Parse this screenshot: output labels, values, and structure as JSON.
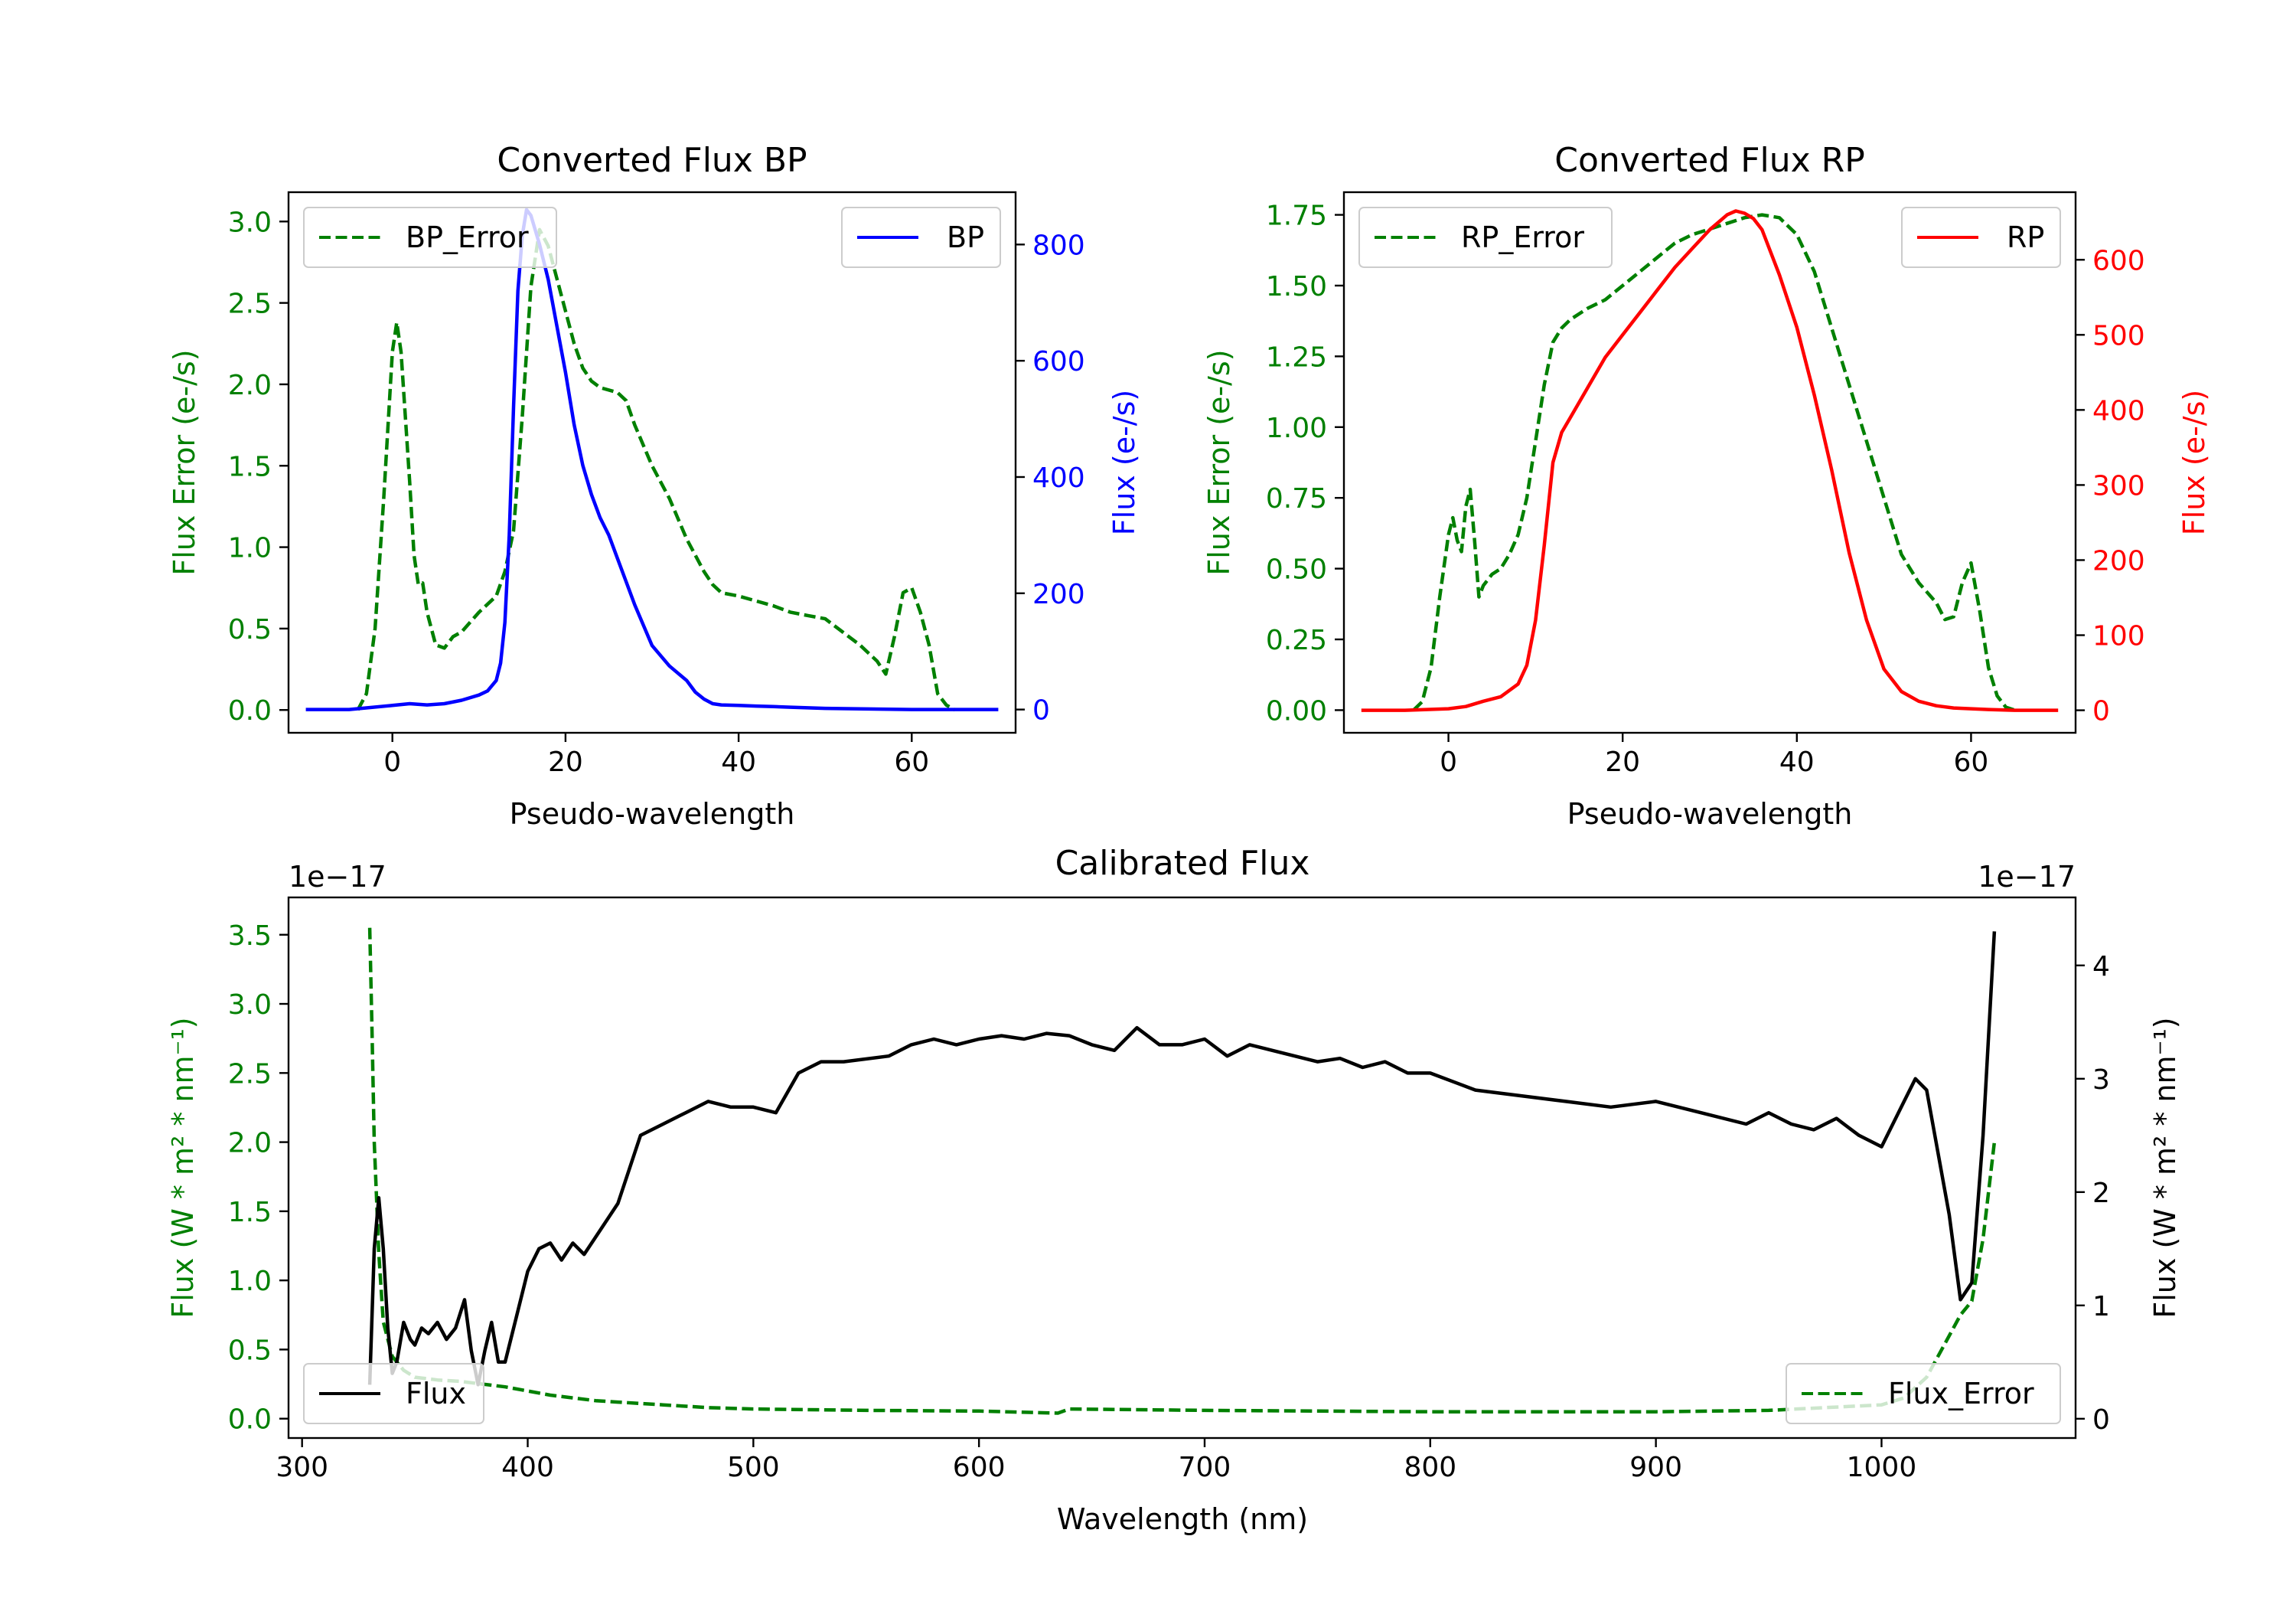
{
  "colors": {
    "error": "#008000",
    "bp": "#0000ff",
    "rp": "#ff0000",
    "flux": "#000000",
    "axis": "#000000"
  },
  "chart_data": [
    {
      "id": "bp",
      "type": "line",
      "title": "Converted Flux BP",
      "xlabel": "Pseudo-wavelength",
      "ylabel_left": "Flux Error (e-/s)",
      "ylabel_right": "Flux (e-/s)",
      "xlim": [
        -12,
        72
      ],
      "ylim_left": [
        -0.14,
        3.18
      ],
      "ylim_right": [
        -40,
        890
      ],
      "xticks": [
        0,
        20,
        40,
        60
      ],
      "xtick_labels": [
        "0",
        "20",
        "40",
        "60"
      ],
      "yticks_left": [
        0.0,
        0.5,
        1.0,
        1.5,
        2.0,
        2.5,
        3.0
      ],
      "ytick_labels_left": [
        "0.0",
        "0.5",
        "1.0",
        "1.5",
        "2.0",
        "2.5",
        "3.0"
      ],
      "yticks_right": [
        0,
        200,
        400,
        600,
        800
      ],
      "ytick_labels_right": [
        "0",
        "200",
        "400",
        "600",
        "800"
      ],
      "legend_left": {
        "label": "BP_Error",
        "placement": "upper left"
      },
      "legend_right": {
        "label": "BP",
        "placement": "upper right"
      },
      "series": [
        {
          "name": "BP_Error",
          "axis": "left",
          "style": "dashed",
          "color_key": "error",
          "x": [
            -4,
            -3,
            -2,
            -1,
            0,
            0.5,
            1,
            2,
            2.5,
            3,
            3.5,
            4,
            5,
            6,
            7,
            8,
            10,
            12,
            13,
            14,
            15,
            16,
            17,
            18,
            19,
            20,
            21,
            22,
            23,
            24,
            26,
            27,
            28,
            30,
            32,
            34,
            36,
            37,
            38,
            40,
            42,
            44,
            46,
            48,
            50,
            52,
            54,
            56,
            57,
            58,
            59,
            60,
            61,
            62,
            63,
            64,
            65
          ],
          "y": [
            0.0,
            0.1,
            0.5,
            1.3,
            2.2,
            2.38,
            2.2,
            1.4,
            0.95,
            0.77,
            0.78,
            0.6,
            0.4,
            0.38,
            0.45,
            0.48,
            0.6,
            0.7,
            0.85,
            1.1,
            1.8,
            2.6,
            2.95,
            2.85,
            2.65,
            2.45,
            2.25,
            2.1,
            2.02,
            1.98,
            1.95,
            1.9,
            1.75,
            1.5,
            1.3,
            1.05,
            0.85,
            0.77,
            0.72,
            0.7,
            0.67,
            0.64,
            0.6,
            0.58,
            0.56,
            0.48,
            0.4,
            0.3,
            0.22,
            0.45,
            0.72,
            0.75,
            0.6,
            0.4,
            0.1,
            0.03,
            0.0
          ]
        },
        {
          "name": "BP",
          "axis": "right",
          "style": "solid",
          "color_key": "bp",
          "x": [
            -10,
            -5,
            0,
            2,
            4,
            6,
            8,
            10,
            11,
            12,
            12.5,
            13,
            13.5,
            14,
            14.5,
            15,
            15.5,
            16,
            17,
            18,
            19,
            20,
            21,
            22,
            23,
            24,
            25,
            26,
            27,
            28,
            30,
            32,
            34,
            35,
            36,
            37,
            38,
            40,
            42,
            44,
            46,
            48,
            50,
            55,
            60,
            65,
            70
          ],
          "y": [
            0,
            0,
            7,
            10,
            8,
            10,
            16,
            25,
            32,
            50,
            80,
            150,
            300,
            520,
            720,
            815,
            860,
            850,
            800,
            740,
            660,
            580,
            490,
            420,
            370,
            330,
            300,
            260,
            220,
            180,
            110,
            75,
            50,
            30,
            18,
            10,
            8,
            7,
            6,
            5,
            4,
            3,
            2,
            1,
            0,
            0,
            0
          ]
        }
      ]
    },
    {
      "id": "rp",
      "type": "line",
      "title": "Converted Flux RP",
      "xlabel": "Pseudo-wavelength",
      "ylabel_left": "Flux Error (e-/s)",
      "ylabel_right": "Flux (e-/s)",
      "xlim": [
        -12,
        72
      ],
      "ylim_left": [
        -0.08,
        1.83
      ],
      "ylim_right": [
        -30,
        690
      ],
      "xticks": [
        0,
        20,
        40,
        60
      ],
      "xtick_labels": [
        "0",
        "20",
        "40",
        "60"
      ],
      "yticks_left": [
        0.0,
        0.25,
        0.5,
        0.75,
        1.0,
        1.25,
        1.5,
        1.75
      ],
      "ytick_labels_left": [
        "0.00",
        "0.25",
        "0.50",
        "0.75",
        "1.00",
        "1.25",
        "1.50",
        "1.75"
      ],
      "yticks_right": [
        0,
        100,
        200,
        300,
        400,
        500,
        600
      ],
      "ytick_labels_right": [
        "0",
        "100",
        "200",
        "300",
        "400",
        "500",
        "600"
      ],
      "legend_left": {
        "label": "RP_Error",
        "placement": "upper left"
      },
      "legend_right": {
        "label": "RP",
        "placement": "upper right"
      },
      "series": [
        {
          "name": "RP_Error",
          "axis": "left",
          "style": "dashed",
          "color_key": "error",
          "x": [
            -4,
            -3,
            -2,
            -1,
            0,
            0.5,
            1,
            1.5,
            2,
            2.5,
            3,
            3.5,
            4,
            5,
            6,
            7,
            8,
            9,
            10,
            11,
            12,
            13,
            14,
            15,
            16,
            18,
            20,
            22,
            24,
            26,
            28,
            30,
            32,
            34,
            36,
            38,
            40,
            42,
            44,
            46,
            48,
            50,
            52,
            54,
            56,
            57,
            58,
            59,
            60,
            61,
            62,
            63,
            64,
            65
          ],
          "y": [
            0.0,
            0.03,
            0.15,
            0.4,
            0.62,
            0.68,
            0.6,
            0.56,
            0.72,
            0.78,
            0.6,
            0.4,
            0.44,
            0.48,
            0.5,
            0.55,
            0.62,
            0.75,
            0.95,
            1.15,
            1.3,
            1.35,
            1.38,
            1.4,
            1.42,
            1.45,
            1.5,
            1.55,
            1.6,
            1.65,
            1.68,
            1.7,
            1.72,
            1.74,
            1.75,
            1.74,
            1.68,
            1.55,
            1.35,
            1.15,
            0.95,
            0.75,
            0.55,
            0.45,
            0.38,
            0.32,
            0.33,
            0.45,
            0.52,
            0.35,
            0.15,
            0.05,
            0.01,
            0.0
          ]
        },
        {
          "name": "RP",
          "axis": "right",
          "style": "solid",
          "color_key": "rp",
          "x": [
            -10,
            -5,
            0,
            2,
            4,
            6,
            8,
            9,
            10,
            11,
            12,
            13,
            14,
            16,
            18,
            20,
            22,
            24,
            26,
            28,
            30,
            32,
            33,
            34,
            35,
            36,
            38,
            40,
            42,
            44,
            46,
            48,
            50,
            52,
            54,
            56,
            58,
            60,
            62,
            65,
            70
          ],
          "y": [
            0,
            0,
            2,
            5,
            12,
            18,
            35,
            60,
            120,
            220,
            330,
            370,
            390,
            430,
            470,
            500,
            530,
            560,
            590,
            615,
            640,
            660,
            665,
            662,
            655,
            640,
            580,
            510,
            420,
            320,
            210,
            120,
            55,
            25,
            12,
            6,
            3,
            2,
            1,
            0,
            0
          ]
        }
      ]
    },
    {
      "id": "calibrated",
      "type": "line",
      "title": "Calibrated Flux",
      "xlabel": "Wavelength (nm)",
      "ylabel_left": "Flux (W * m² * nm⁻¹)",
      "ylabel_right": "Flux (W * m² * nm⁻¹)",
      "offset_left": "1e−17",
      "offset_right": "1e−17",
      "xlim": [
        294,
        1086
      ],
      "ylim_left": [
        -0.14,
        3.77
      ],
      "ylim_right": [
        -0.17,
        4.6
      ],
      "xticks": [
        300,
        400,
        500,
        600,
        700,
        800,
        900,
        1000
      ],
      "xtick_labels": [
        "300",
        "400",
        "500",
        "600",
        "700",
        "800",
        "900",
        "1000"
      ],
      "yticks_left": [
        0.0,
        0.5,
        1.0,
        1.5,
        2.0,
        2.5,
        3.0,
        3.5
      ],
      "ytick_labels_left": [
        "0.0",
        "0.5",
        "1.0",
        "1.5",
        "2.0",
        "2.5",
        "3.0",
        "3.5"
      ],
      "yticks_right": [
        0,
        1,
        2,
        3,
        4
      ],
      "ytick_labels_right": [
        "0",
        "1",
        "2",
        "3",
        "4"
      ],
      "legend_left": {
        "label": "Flux",
        "placement": "lower left"
      },
      "legend_right": {
        "label": "Flux_Error",
        "placement": "lower right"
      },
      "series": [
        {
          "name": "Flux_Error",
          "axis": "left",
          "style": "dashed",
          "color_key": "error",
          "x": [
            330,
            331,
            332,
            334,
            336,
            340,
            345,
            350,
            360,
            370,
            380,
            390,
            400,
            410,
            420,
            430,
            440,
            450,
            460,
            480,
            500,
            550,
            600,
            635,
            640,
            700,
            800,
            900,
            950,
            1000,
            1010,
            1020,
            1030,
            1035,
            1040,
            1045,
            1050
          ],
          "y": [
            3.55,
            2.8,
            2.0,
            1.2,
            0.7,
            0.45,
            0.35,
            0.3,
            0.28,
            0.27,
            0.25,
            0.23,
            0.2,
            0.17,
            0.15,
            0.13,
            0.12,
            0.11,
            0.1,
            0.08,
            0.07,
            0.06,
            0.055,
            0.04,
            0.07,
            0.06,
            0.05,
            0.05,
            0.06,
            0.1,
            0.15,
            0.3,
            0.6,
            0.75,
            0.85,
            1.3,
            2.0
          ]
        },
        {
          "name": "Flux",
          "axis": "right",
          "style": "solid",
          "color_key": "flux",
          "x": [
            330,
            332,
            334,
            336,
            338,
            340,
            342,
            345,
            348,
            350,
            353,
            356,
            360,
            364,
            368,
            372,
            375,
            378,
            381,
            384,
            387,
            390,
            395,
            400,
            405,
            410,
            415,
            420,
            425,
            430,
            440,
            450,
            460,
            470,
            480,
            490,
            500,
            510,
            520,
            530,
            540,
            560,
            570,
            580,
            590,
            600,
            610,
            620,
            630,
            640,
            650,
            660,
            670,
            680,
            690,
            700,
            710,
            720,
            730,
            740,
            750,
            760,
            770,
            780,
            790,
            800,
            820,
            840,
            860,
            880,
            900,
            920,
            940,
            950,
            960,
            970,
            980,
            990,
            1000,
            1010,
            1015,
            1020,
            1030,
            1035,
            1040,
            1045,
            1050
          ],
          "y": [
            0.3,
            1.5,
            1.95,
            1.5,
            0.8,
            0.4,
            0.5,
            0.85,
            0.7,
            0.65,
            0.8,
            0.75,
            0.85,
            0.7,
            0.8,
            1.05,
            0.6,
            0.3,
            0.6,
            0.85,
            0.5,
            0.5,
            0.9,
            1.3,
            1.5,
            1.55,
            1.4,
            1.55,
            1.45,
            1.6,
            1.9,
            2.5,
            2.6,
            2.7,
            2.8,
            2.75,
            2.75,
            2.7,
            3.05,
            3.15,
            3.15,
            3.2,
            3.3,
            3.35,
            3.3,
            3.35,
            3.38,
            3.35,
            3.4,
            3.38,
            3.3,
            3.25,
            3.45,
            3.3,
            3.3,
            3.35,
            3.2,
            3.3,
            3.25,
            3.2,
            3.15,
            3.18,
            3.1,
            3.15,
            3.05,
            3.05,
            2.9,
            2.85,
            2.8,
            2.75,
            2.8,
            2.7,
            2.6,
            2.7,
            2.6,
            2.55,
            2.65,
            2.5,
            2.4,
            2.8,
            3.0,
            2.9,
            1.8,
            1.05,
            1.2,
            2.5,
            4.3
          ]
        }
      ]
    }
  ]
}
